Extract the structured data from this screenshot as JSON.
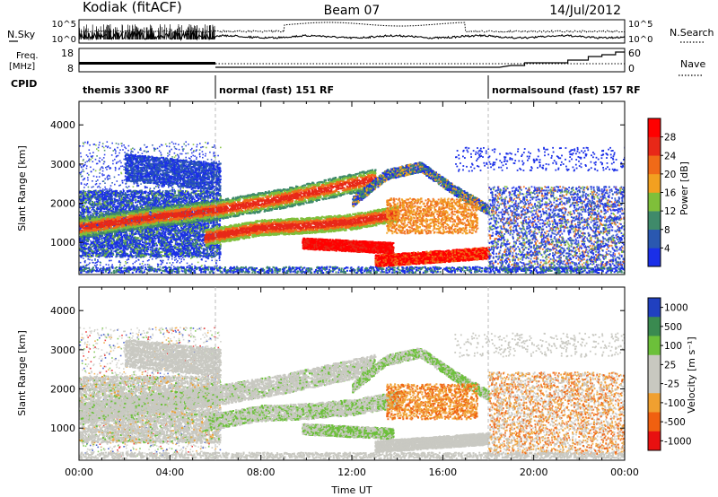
{
  "header": {
    "station": "Kodiak (fitACF)",
    "beam": "Beam 07",
    "date": "14/Jul/2012"
  },
  "noise_panel": {
    "left_label": "N.Sky",
    "right_label": "N.Search",
    "ticks_left": [
      "10^5",
      "10^0"
    ],
    "ticks_right": [
      "10^5",
      "10^0"
    ]
  },
  "freq_panel": {
    "left_label_1": "Freq.",
    "left_label_2": "[MHz]",
    "right_label": "Nave",
    "ticks_left": [
      "18",
      "8"
    ],
    "ticks_right": [
      "60",
      "0"
    ]
  },
  "cpid": {
    "label": "CPID",
    "segments": [
      {
        "name": "themis 3300 RF",
        "start_hour": 0
      },
      {
        "name": "normal (fast) 151 RF",
        "start_hour": 6
      },
      {
        "name": "normalsound (fast) 157 RF",
        "start_hour": 18
      }
    ]
  },
  "chart_data": [
    {
      "type": "heatmap",
      "name": "power",
      "ylabel": "Slant Range [km]",
      "xlim_hours": [
        0,
        24
      ],
      "ylim_km": [
        180,
        4600
      ],
      "yticks": [
        1000,
        2000,
        3000,
        4000
      ],
      "colorbar": {
        "label": "Power [dB]",
        "ticks": [
          "4",
          "8",
          "12",
          "16",
          "20",
          "24",
          "28"
        ],
        "colors": [
          "#1a2fe8",
          "#2a58b0",
          "#3f8a6a",
          "#7fbf3a",
          "#f2a020",
          "#f06a18",
          "#e82818",
          "#ff0000"
        ]
      }
    },
    {
      "type": "heatmap",
      "name": "velocity",
      "ylabel": "Slant Range [km]",
      "xlabel": "Time UT",
      "xlim_hours": [
        0,
        24
      ],
      "ylim_km": [
        180,
        4600
      ],
      "yticks": [
        1000,
        2000,
        3000,
        4000
      ],
      "xticks": [
        "00:00",
        "04:00",
        "08:00",
        "12:00",
        "16:00",
        "20:00",
        "00:00"
      ],
      "colorbar": {
        "label": "Velocity [m s⁻¹]",
        "ticks": [
          "1000",
          "500",
          "100",
          "25",
          "-25",
          "-100",
          "-500",
          "-1000"
        ],
        "colors": [
          "#2040c0",
          "#3a8a50",
          "#6cc03a",
          "#c8c8c0",
          "#c8c8c0",
          "#f0a030",
          "#f06010",
          "#e81010"
        ]
      }
    }
  ]
}
